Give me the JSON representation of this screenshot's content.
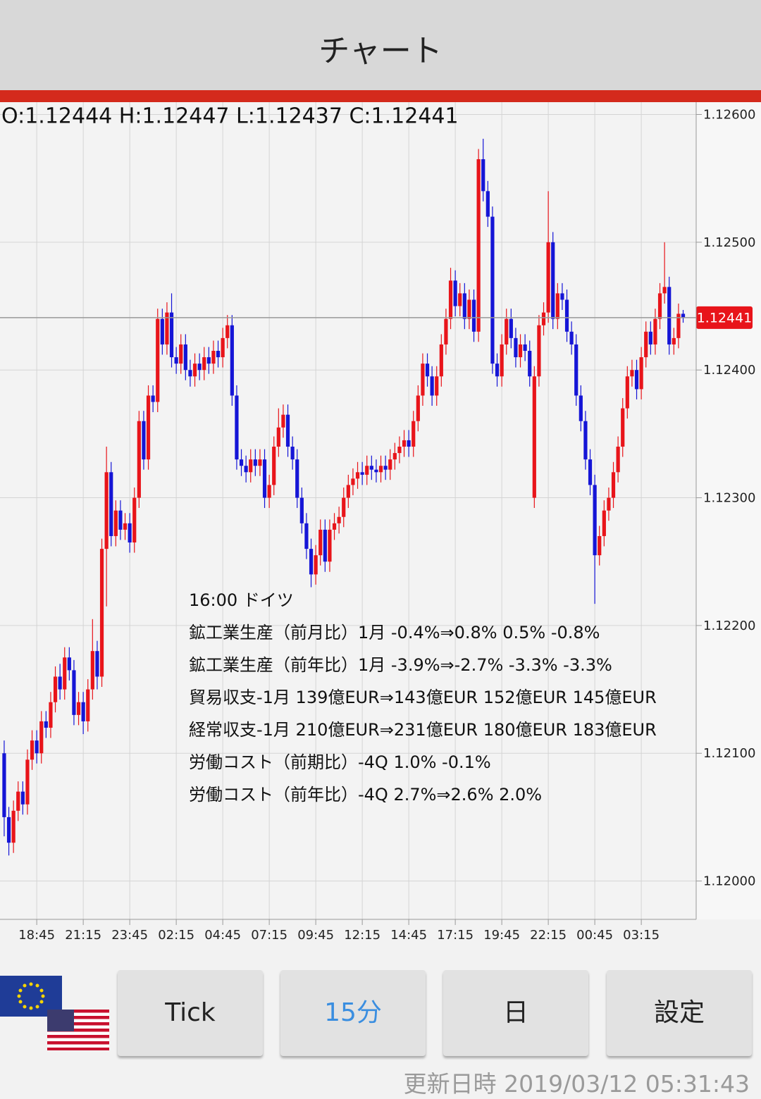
{
  "header": {
    "title": "チャート"
  },
  "chart_data": {
    "type": "candlestick",
    "ohlc_text": "O:1.12444 H:1.12447 L:1.12437 C:1.12441",
    "up_color": "#e8141a",
    "down_color": "#1515d6",
    "open": [
      1.121,
      1.1205,
      1.1203,
      1.12055,
      1.1207,
      1.1206,
      1.12095,
      1.1211,
      1.121,
      1.12125,
      1.1212,
      1.1214,
      1.1216,
      1.1215,
      1.12175,
      1.12165,
      1.1213,
      1.1214,
      1.12125,
      1.1215,
      1.1218,
      1.1216,
      1.1226,
      1.1232,
      1.1227,
      1.1229,
      1.12275,
      1.1228,
      1.12265,
      1.123,
      1.1236,
      1.1233,
      1.1238,
      1.12375,
      1.1244,
      1.1242,
      1.12445,
      1.1241,
      1.12405,
      1.1242,
      1.124,
      1.12395,
      1.12405,
      1.124,
      1.1241,
      1.12405,
      1.12415,
      1.1241,
      1.12425,
      1.12435,
      1.1238,
      1.1233,
      1.12325,
      1.1232,
      1.1233,
      1.12325,
      1.1233,
      1.123,
      1.1231,
      1.1234,
      1.12355,
      1.12365,
      1.1234,
      1.1233,
      1.123,
      1.1228,
      1.1226,
      1.1224,
      1.12255,
      1.12275,
      1.1225,
      1.12275,
      1.1228,
      1.12285,
      1.123,
      1.1231,
      1.12315,
      1.1232,
      1.12318,
      1.12325,
      1.12322,
      1.1232,
      1.12325,
      1.12322,
      1.1233,
      1.12335,
      1.1234,
      1.12345,
      1.1234,
      1.1236,
      1.1238,
      1.12405,
      1.12395,
      1.1238,
      1.12395,
      1.1242,
      1.1244,
      1.1247,
      1.1245,
      1.1246,
      1.1244,
      1.12455,
      1.1243,
      1.12565,
      1.1254,
      1.1252,
      1.12405,
      1.12395,
      1.1242,
      1.1244,
      1.12425,
      1.1241,
      1.1242,
      1.12415,
      1.123,
      1.12395,
      1.12435,
      1.12445,
      1.125,
      1.1244,
      1.1246,
      1.12455,
      1.1243,
      1.1242,
      1.1238,
      1.1236,
      1.1233,
      1.1231,
      1.12255,
      1.1227,
      1.1229,
      1.123,
      1.1232,
      1.1234,
      1.1237,
      1.12395,
      1.124,
      1.12385,
      1.1241,
      1.1243,
      1.1242,
      1.1244,
      1.1246,
      1.12465,
      1.1242,
      1.12425,
      1.12444
    ],
    "high": [
      1.1211,
      1.12058,
      1.12063,
      1.12078,
      1.12078,
      1.12103,
      1.12118,
      1.12118,
      1.12133,
      1.12133,
      1.12148,
      1.12168,
      1.1217,
      1.12183,
      1.12183,
      1.12173,
      1.12148,
      1.12148,
      1.12158,
      1.12205,
      1.12188,
      1.12268,
      1.1234,
      1.12328,
      1.12298,
      1.12298,
      1.12288,
      1.12288,
      1.12308,
      1.12368,
      1.12368,
      1.12388,
      1.12388,
      1.12448,
      1.12448,
      1.12453,
      1.1246,
      1.12418,
      1.12428,
      1.12428,
      1.12408,
      1.12413,
      1.12413,
      1.12418,
      1.12418,
      1.12423,
      1.12423,
      1.12433,
      1.12443,
      1.12443,
      1.12388,
      1.12338,
      1.12333,
      1.12338,
      1.12338,
      1.12338,
      1.12338,
      1.12318,
      1.12348,
      1.1237,
      1.12373,
      1.12373,
      1.12348,
      1.12338,
      1.12308,
      1.12288,
      1.12268,
      1.12263,
      1.12283,
      1.12283,
      1.12283,
      1.12288,
      1.12293,
      1.12308,
      1.12318,
      1.12323,
      1.12328,
      1.12328,
      1.12333,
      1.12333,
      1.1233,
      1.12333,
      1.12333,
      1.12338,
      1.12343,
      1.12348,
      1.12353,
      1.12353,
      1.12368,
      1.12388,
      1.12413,
      1.12413,
      1.12403,
      1.12403,
      1.12428,
      1.12448,
      1.1248,
      1.12478,
      1.12468,
      1.12468,
      1.12463,
      1.12463,
      1.12573,
      1.12581,
      1.12548,
      1.12528,
      1.12413,
      1.12428,
      1.12448,
      1.12448,
      1.12433,
      1.12428,
      1.12428,
      1.12423,
      1.12403,
      1.12443,
      1.12453,
      1.1254,
      1.12508,
      1.12468,
      1.12468,
      1.12463,
      1.12438,
      1.12428,
      1.12388,
      1.12368,
      1.12338,
      1.12318,
      1.12278,
      1.12298,
      1.12308,
      1.12328,
      1.12348,
      1.12378,
      1.12403,
      1.12408,
      1.12408,
      1.12418,
      1.12438,
      1.12438,
      1.12448,
      1.12468,
      1.125,
      1.12473,
      1.12433,
      1.12452,
      1.12447
    ],
    "low": [
      1.12035,
      1.1202,
      1.12022,
      1.12047,
      1.12052,
      1.12052,
      1.12087,
      1.12092,
      1.12092,
      1.12112,
      1.12112,
      1.12132,
      1.12142,
      1.12142,
      1.12157,
      1.12122,
      1.12122,
      1.12115,
      1.12117,
      1.12142,
      1.1215,
      1.12152,
      1.12215,
      1.12262,
      1.12262,
      1.12267,
      1.12267,
      1.12257,
      1.12257,
      1.12292,
      1.12322,
      1.12322,
      1.12367,
      1.12367,
      1.12412,
      1.12412,
      1.12402,
      1.12397,
      1.12397,
      1.12392,
      1.12387,
      1.12387,
      1.12392,
      1.12392,
      1.12397,
      1.12397,
      1.12402,
      1.12402,
      1.12417,
      1.12372,
      1.12322,
      1.12317,
      1.12312,
      1.12312,
      1.12317,
      1.12317,
      1.12292,
      1.12292,
      1.12302,
      1.12332,
      1.12347,
      1.12332,
      1.12322,
      1.12292,
      1.12272,
      1.12252,
      1.1223,
      1.12232,
      1.12247,
      1.12242,
      1.12242,
      1.12267,
      1.12272,
      1.12277,
      1.12292,
      1.12302,
      1.12307,
      1.1231,
      1.1231,
      1.12314,
      1.12312,
      1.12312,
      1.12314,
      1.12314,
      1.12322,
      1.12327,
      1.12332,
      1.12332,
      1.12332,
      1.12352,
      1.12372,
      1.12387,
      1.12372,
      1.12372,
      1.12387,
      1.12412,
      1.12432,
      1.12442,
      1.12442,
      1.12432,
      1.12432,
      1.12422,
      1.12422,
      1.12532,
      1.12512,
      1.12397,
      1.12387,
      1.12387,
      1.12412,
      1.12417,
      1.12402,
      1.12402,
      1.12407,
      1.12387,
      1.12292,
      1.12387,
      1.12427,
      1.12437,
      1.12432,
      1.12432,
      1.12447,
      1.12422,
      1.12412,
      1.12372,
      1.12352,
      1.12322,
      1.12302,
      1.12217,
      1.12247,
      1.12262,
      1.12282,
      1.12292,
      1.12312,
      1.12332,
      1.12362,
      1.12387,
      1.12377,
      1.12377,
      1.12402,
      1.12412,
      1.12412,
      1.12432,
      1.12452,
      1.12412,
      1.12412,
      1.12417,
      1.12437
    ],
    "close": [
      1.1205,
      1.1203,
      1.12055,
      1.1207,
      1.1206,
      1.12095,
      1.1211,
      1.121,
      1.12125,
      1.1212,
      1.1214,
      1.1216,
      1.1215,
      1.12175,
      1.12165,
      1.1213,
      1.1214,
      1.12125,
      1.1215,
      1.1218,
      1.1216,
      1.1226,
      1.1232,
      1.1227,
      1.1229,
      1.12275,
      1.1228,
      1.12265,
      1.123,
      1.1236,
      1.1233,
      1.1238,
      1.12375,
      1.1244,
      1.1242,
      1.12445,
      1.1241,
      1.12405,
      1.1242,
      1.124,
      1.12395,
      1.12405,
      1.124,
      1.1241,
      1.12405,
      1.12415,
      1.1241,
      1.12425,
      1.12435,
      1.1238,
      1.1233,
      1.12325,
      1.1232,
      1.1233,
      1.12325,
      1.1233,
      1.123,
      1.1231,
      1.1234,
      1.12355,
      1.12365,
      1.1234,
      1.1233,
      1.123,
      1.1228,
      1.1226,
      1.1224,
      1.12255,
      1.12275,
      1.1225,
      1.12275,
      1.1228,
      1.12285,
      1.123,
      1.1231,
      1.12315,
      1.1232,
      1.12318,
      1.12325,
      1.12322,
      1.1232,
      1.12325,
      1.12322,
      1.1233,
      1.12335,
      1.1234,
      1.12345,
      1.1234,
      1.1236,
      1.1238,
      1.12405,
      1.12395,
      1.1238,
      1.12395,
      1.1242,
      1.1244,
      1.1247,
      1.1245,
      1.1246,
      1.1244,
      1.12455,
      1.1243,
      1.12565,
      1.1254,
      1.1252,
      1.12405,
      1.12395,
      1.1242,
      1.1244,
      1.12425,
      1.1241,
      1.1242,
      1.12415,
      1.12395,
      1.12395,
      1.12435,
      1.12445,
      1.125,
      1.1244,
      1.1246,
      1.12455,
      1.1243,
      1.1242,
      1.1238,
      1.1236,
      1.1233,
      1.1231,
      1.12255,
      1.1227,
      1.1229,
      1.123,
      1.1232,
      1.1234,
      1.1237,
      1.12395,
      1.124,
      1.12385,
      1.1241,
      1.1243,
      1.1242,
      1.1244,
      1.1246,
      1.12465,
      1.1242,
      1.12425,
      1.12444,
      1.12441
    ],
    "last_price": {
      "value": 1.12441,
      "label": "1.12441"
    },
    "xlim": [
      -0.9,
      148.8
    ],
    "xticks": [
      {
        "value": 7,
        "label": "18:45"
      },
      {
        "value": 17,
        "label": "21:15"
      },
      {
        "value": 27,
        "label": "23:45"
      },
      {
        "value": 37,
        "label": "02:15"
      },
      {
        "value": 47,
        "label": "04:45"
      },
      {
        "value": 57,
        "label": "07:15"
      },
      {
        "value": 67,
        "label": "09:45"
      },
      {
        "value": 77,
        "label": "12:15"
      },
      {
        "value": 87,
        "label": "14:45"
      },
      {
        "value": 97,
        "label": "17:15"
      },
      {
        "value": 107,
        "label": "19:45"
      },
      {
        "value": 117,
        "label": "22:15"
      },
      {
        "value": 127,
        "label": "00:45"
      },
      {
        "value": 137,
        "label": "03:15"
      }
    ],
    "ylim": [
      1.1197,
      1.12608
    ],
    "yticks": [
      {
        "value": 1.126,
        "label": "1.12600"
      },
      {
        "value": 1.125,
        "label": "1.12500"
      },
      {
        "value": 1.124,
        "label": "1.12400"
      },
      {
        "value": 1.123,
        "label": "1.12300"
      },
      {
        "value": 1.122,
        "label": "1.12200"
      },
      {
        "value": 1.121,
        "label": "1.12100"
      },
      {
        "value": 1.12,
        "label": "1.12000"
      }
    ],
    "grid": true
  },
  "news": {
    "lines": [
      "16:00 ドイツ",
      "鉱工業生産（前月比）1月 -0.4%⇒0.8% 0.5% -0.8%",
      "鉱工業生産（前年比）1月 -3.9%⇒-2.7% -3.3% -3.3%",
      "貿易収支-1月 139億EUR⇒143億EUR 152億EUR 145億EUR",
      "経常収支-1月 210億EUR⇒231億EUR 180億EUR 183億EUR",
      "労働コスト（前期比）-4Q 1.0% -0.1%",
      "労働コスト（前年比）-4Q 2.7%⇒2.6% 2.0%"
    ]
  },
  "buttons": [
    "Tick",
    "15分",
    "日",
    "設定"
  ],
  "footer": {
    "updated": "更新日時 2019/03/12 05:31:43"
  }
}
